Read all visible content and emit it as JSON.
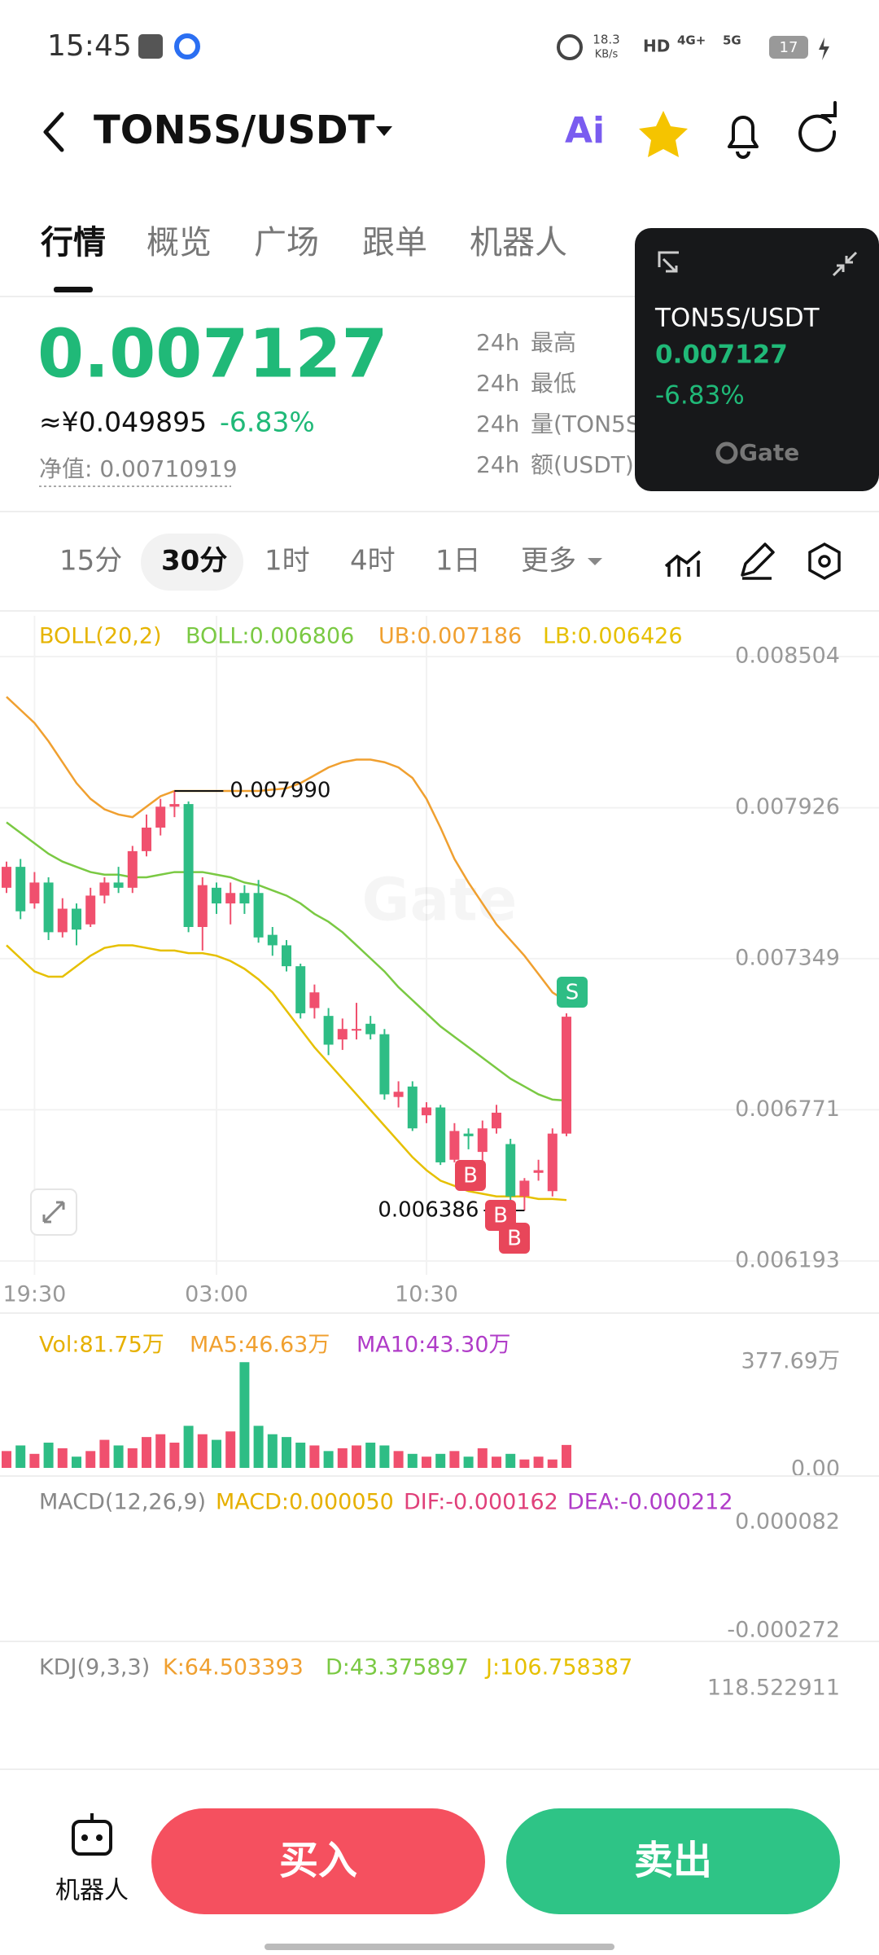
{
  "status_bar": {
    "time": "15:45",
    "net_speed_value": "18.3",
    "net_speed_unit": "KB/s",
    "network": [
      "HD",
      "4G+",
      "5G"
    ],
    "battery": "17"
  },
  "header": {
    "title": "TON5S/USDT",
    "ai_label": "Ai"
  },
  "tabs": [
    "行情",
    "概览",
    "广场",
    "跟单",
    "机器人"
  ],
  "ticker": {
    "price": "0.007127",
    "cny": "≈¥0.049895",
    "change": "-6.83%",
    "net_value": "净值: 0.00710919",
    "stats": [
      {
        "period": "24h",
        "label": "最高"
      },
      {
        "period": "24h",
        "label": "最低"
      },
      {
        "period": "24h",
        "label": "量(TON5S)"
      },
      {
        "period": "24h",
        "label": "额(USDT)"
      }
    ]
  },
  "popup": {
    "pair": "TON5S/USDT",
    "price": "0.007127",
    "change": "-6.83%",
    "brand": "Gate"
  },
  "intervals": [
    "15分",
    "30分",
    "1时",
    "4时",
    "1日",
    "更多"
  ],
  "selected_interval": 1,
  "watermark": "Gate",
  "chart_data": [
    {
      "type": "candlestick",
      "up_color": "#f0506e",
      "down_color": "#2ebd85",
      "legend": [
        {
          "text": "BOLL(20,2)",
          "color": "#e6b400"
        },
        {
          "text": "BOLL:0.006806",
          "color": "#7ac943"
        },
        {
          "text": "UB:0.007186",
          "color": "#f0a030"
        },
        {
          "text": "LB:0.006426",
          "color": "#e6c000"
        }
      ],
      "open": [
        0.00762,
        0.0077,
        0.00756,
        0.00764,
        0.00745,
        0.00754,
        0.00748,
        0.00759,
        0.00764,
        0.00762,
        0.00776,
        0.00785,
        0.00793,
        0.00794,
        0.00747,
        0.00762,
        0.00756,
        0.0076,
        0.0076,
        0.00744,
        0.0074,
        0.00732,
        0.00716,
        0.00713,
        0.00704,
        0.00708,
        0.0071,
        0.00706,
        0.00682,
        0.00686,
        0.00675,
        0.00678,
        0.00658,
        0.00668,
        0.00661,
        0.0067,
        0.00664,
        0.00644,
        0.00653,
        0.00646,
        0.00668
      ],
      "close": [
        0.0077,
        0.00753,
        0.00764,
        0.00745,
        0.00754,
        0.00746,
        0.00759,
        0.00764,
        0.00762,
        0.00776,
        0.00785,
        0.00793,
        0.00794,
        0.00747,
        0.00763,
        0.00756,
        0.0076,
        0.00756,
        0.00743,
        0.0074,
        0.00732,
        0.00714,
        0.00722,
        0.00702,
        0.00708,
        0.00708,
        0.00706,
        0.00683,
        0.00684,
        0.0067,
        0.00678,
        0.00657,
        0.00669,
        0.00667,
        0.0067,
        0.00676,
        0.00644,
        0.0065,
        0.00654,
        0.00668,
        0.007127
      ],
      "high": [
        0.00772,
        0.00773,
        0.00768,
        0.00766,
        0.00758,
        0.00756,
        0.00762,
        0.00766,
        0.0077,
        0.00778,
        0.0079,
        0.00796,
        0.00799,
        0.00795,
        0.00766,
        0.00764,
        0.00764,
        0.00763,
        0.00765,
        0.00747,
        0.00742,
        0.00733,
        0.00725,
        0.00716,
        0.00712,
        0.00718,
        0.00713,
        0.00708,
        0.00688,
        0.00688,
        0.0068,
        0.00679,
        0.00672,
        0.0067,
        0.00673,
        0.00679,
        0.00666,
        0.00651,
        0.00658,
        0.0067,
        0.00714
      ],
      "low": [
        0.0076,
        0.0075,
        0.00754,
        0.00742,
        0.00743,
        0.0074,
        0.00747,
        0.00756,
        0.0076,
        0.0076,
        0.00774,
        0.00782,
        0.00789,
        0.00745,
        0.00738,
        0.00752,
        0.00748,
        0.00752,
        0.00741,
        0.00736,
        0.0073,
        0.00712,
        0.00712,
        0.00698,
        0.007,
        0.00704,
        0.00704,
        0.00681,
        0.00678,
        0.00669,
        0.00672,
        0.00656,
        0.00657,
        0.00662,
        0.00656,
        0.00668,
        0.00642,
        0.006386,
        0.0065,
        0.00644,
        0.00667
      ],
      "series": [
        {
          "name": "UB",
          "color": "#f0a030",
          "values": [
            0.00835,
            0.0083,
            0.00825,
            0.00818,
            0.0081,
            0.00802,
            0.00796,
            0.00792,
            0.0079,
            0.00789,
            0.00793,
            0.00797,
            0.00799,
            0.00799,
            0.00799,
            0.00799,
            0.00799,
            0.00799,
            0.00799,
            0.007995,
            0.008,
            0.00802,
            0.00805,
            0.00808,
            0.0081,
            0.00811,
            0.00811,
            0.0081,
            0.00808,
            0.00804,
            0.00796,
            0.00785,
            0.00773,
            0.00764,
            0.00756,
            0.00748,
            0.00742,
            0.00736,
            0.00729,
            0.00722,
            0.007186
          ]
        },
        {
          "name": "BOLL",
          "color": "#7ac943",
          "values": [
            0.00787,
            0.00783,
            0.00779,
            0.00775,
            0.00772,
            0.0077,
            0.00768,
            0.00767,
            0.00767,
            0.00766,
            0.00766,
            0.00767,
            0.00768,
            0.00768,
            0.00768,
            0.00767,
            0.00766,
            0.00764,
            0.00763,
            0.00761,
            0.00759,
            0.00756,
            0.00752,
            0.00749,
            0.00745,
            0.0074,
            0.00735,
            0.0073,
            0.00724,
            0.00719,
            0.00714,
            0.00709,
            0.00705,
            0.00701,
            0.00697,
            0.00693,
            0.00689,
            0.00686,
            0.00683,
            0.00681,
            0.006806
          ]
        },
        {
          "name": "LB",
          "color": "#e6c000",
          "values": [
            0.0074,
            0.00735,
            0.0073,
            0.00728,
            0.00728,
            0.00732,
            0.00736,
            0.00739,
            0.0074,
            0.0074,
            0.00739,
            0.00738,
            0.00738,
            0.00737,
            0.00737,
            0.00736,
            0.00734,
            0.00731,
            0.00727,
            0.00722,
            0.00715,
            0.00708,
            0.00701,
            0.00695,
            0.00689,
            0.00683,
            0.00677,
            0.00671,
            0.00665,
            0.00659,
            0.00654,
            0.0065,
            0.00648,
            0.00646,
            0.00645,
            0.00644,
            0.00644,
            0.00644,
            0.00643,
            0.00643,
            0.006426
          ]
        }
      ],
      "xlim": [
        0,
        40
      ],
      "xticks": [
        {
          "value": 2,
          "label": "19:30"
        },
        {
          "value": 15,
          "label": "03:00"
        },
        {
          "value": 30,
          "label": "10:30"
        }
      ],
      "ylim": [
        0.006193,
        0.008504
      ],
      "yticks": [
        0.008504,
        0.007926,
        0.007349,
        0.006771,
        0.006193
      ],
      "high_label": "0.007990",
      "low_label": "0.006386",
      "trade_markers": [
        {
          "label": "B",
          "color": "#e8465a"
        },
        {
          "label": "B",
          "color": "#e8465a"
        },
        {
          "label": "B",
          "color": "#e8465a"
        },
        {
          "label": "S",
          "color": "#2ebd85"
        }
      ]
    },
    {
      "type": "volume",
      "legend": [
        {
          "text": "Vol:81.75万",
          "color": "#e6b000"
        },
        {
          "text": "MA5:46.63万",
          "color": "#f0a030"
        },
        {
          "text": "MA10:43.30万",
          "color": "#b03cc8"
        }
      ],
      "values": [
        60,
        80,
        50,
        90,
        70,
        40,
        60,
        100,
        80,
        70,
        110,
        120,
        90,
        150,
        120,
        100,
        130,
        377,
        150,
        120,
        110,
        90,
        80,
        60,
        70,
        80,
        90,
        80,
        60,
        50,
        40,
        50,
        60,
        40,
        70,
        40,
        50,
        30,
        40,
        30,
        81.75
      ],
      "ylim": [
        0,
        377.69
      ],
      "yticks": [
        {
          "value": 377.69,
          "label": "377.69万"
        },
        {
          "value": 0,
          "label": "0.00"
        }
      ]
    },
    {
      "type": "macd",
      "legend": [
        {
          "text": "MACD(12,26,9)",
          "color": "#888888"
        },
        {
          "text": "MACD:0.000050",
          "color": "#e6b000"
        },
        {
          "text": "DIF:-0.000162",
          "color": "#e0407a"
        },
        {
          "text": "DEA:-0.000212",
          "color": "#b03cc8"
        }
      ],
      "ylim": [
        -0.000272,
        8.2e-05
      ],
      "yticks": [
        8.2e-05,
        -0.000272
      ]
    },
    {
      "type": "kdj",
      "legend": [
        {
          "text": "KDJ(9,3,3)",
          "color": "#888888"
        },
        {
          "text": "K:64.503393",
          "color": "#f0a030"
        },
        {
          "text": "D:43.375897",
          "color": "#7ac943"
        },
        {
          "text": "J:106.758387",
          "color": "#e6c000"
        }
      ],
      "yticks": [
        118.522911
      ]
    }
  ],
  "footer": {
    "robot": "机器人",
    "buy": "买入",
    "sell": "卖出"
  }
}
